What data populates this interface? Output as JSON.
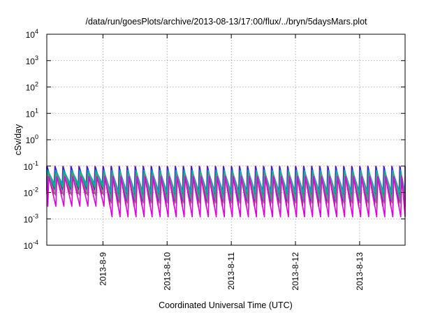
{
  "chart_data": {
    "type": "line",
    "title": "/data/run/goesPlots/archive/2013-08-13/17:00/flux/../bryn/5daysMars.plot",
    "xlabel": "Coordinated Universal Time (UTC)",
    "ylabel": "cSv/day",
    "yscale": "log",
    "ylim": [
      0.0001,
      10000
    ],
    "y_ticks": [
      {
        "base": "10",
        "exp": "-4",
        "value": 0.0001
      },
      {
        "base": "10",
        "exp": "-3",
        "value": 0.001
      },
      {
        "base": "10",
        "exp": "-2",
        "value": 0.01
      },
      {
        "base": "10",
        "exp": "-1",
        "value": 0.1
      },
      {
        "base": "10",
        "exp": "0",
        "value": 1
      },
      {
        "base": "10",
        "exp": "1",
        "value": 10
      },
      {
        "base": "10",
        "exp": "2",
        "value": 100
      },
      {
        "base": "10",
        "exp": "3",
        "value": 1000
      },
      {
        "base": "10",
        "exp": "4",
        "value": 10000
      }
    ],
    "x_axis_type": "date",
    "xlim": [
      "2013-08-08T03:00",
      "2013-08-13T17:00"
    ],
    "x_ticks": [
      "2013-8-9",
      "2013-8-10",
      "2013-8-11",
      "2013-8-12",
      "2013-8-13"
    ],
    "x_tick_dates": [
      "2013-08-09T00:00",
      "2013-08-10T00:00",
      "2013-08-11T00:00",
      "2013-08-12T00:00",
      "2013-08-13T00:00"
    ],
    "grid": true,
    "legend": "none",
    "sawtooth_period_hours": 3,
    "series": [
      {
        "color": "#e0245e",
        "peak": 0.1,
        "trough_days": [
          0.009,
          0.003,
          0.003,
          0.003,
          0.003,
          0.003
        ]
      },
      {
        "color": "#2020e0",
        "peak": 0.095,
        "trough_days": [
          0.012,
          0.005,
          0.005,
          0.005,
          0.005,
          0.005
        ]
      },
      {
        "color": "#00a0e0",
        "peak": 0.07,
        "trough_days": [
          0.02,
          0.01,
          0.01,
          0.01,
          0.01,
          0.01
        ]
      },
      {
        "color": "#00c060",
        "peak": 0.06,
        "trough_days": [
          0.015,
          0.006,
          0.006,
          0.006,
          0.006,
          0.006
        ]
      },
      {
        "color": "#808080",
        "peak": 0.05,
        "trough_days": [
          0.008,
          0.004,
          0.004,
          0.004,
          0.004,
          0.004
        ]
      },
      {
        "color": "#e000e0",
        "peak": 0.04,
        "trough_days": [
          0.003,
          0.0012,
          0.0012,
          0.0012,
          0.0012,
          0.0012
        ]
      }
    ]
  }
}
